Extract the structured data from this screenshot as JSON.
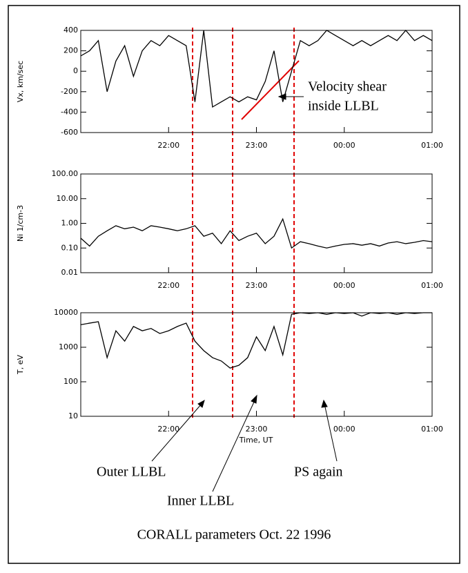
{
  "chart_data": [
    {
      "type": "line",
      "ylabel": "Vx, km/sec",
      "color": "#000000",
      "x": [
        21.0,
        21.1,
        21.2,
        21.3,
        21.4,
        21.5,
        21.6,
        21.7,
        21.8,
        21.9,
        22.0,
        22.1,
        22.2,
        22.3,
        22.4,
        22.5,
        22.6,
        22.7,
        22.8,
        22.9,
        23.0,
        23.1,
        23.2,
        23.3,
        23.4,
        23.5,
        23.6,
        23.7,
        23.8,
        23.9,
        24.0,
        24.1,
        24.2,
        24.3,
        24.4,
        24.5,
        24.6,
        24.7,
        24.8,
        24.9,
        25.0
      ],
      "values": [
        150,
        200,
        300,
        -200,
        100,
        250,
        -50,
        200,
        300,
        250,
        350,
        300,
        250,
        -300,
        400,
        -350,
        -300,
        -250,
        -300,
        -250,
        -280,
        -100,
        200,
        -300,
        0,
        300,
        250,
        300,
        400,
        350,
        300,
        250,
        300,
        250,
        300,
        350,
        300,
        400,
        300,
        350,
        300
      ],
      "xlim": [
        21,
        25
      ],
      "xticks": [
        {
          "value": 22,
          "label": "22:00"
        },
        {
          "value": 23,
          "label": "23:00"
        },
        {
          "value": 24,
          "label": "00:00"
        },
        {
          "value": 25,
          "label": "01:00"
        }
      ],
      "ylim": [
        -600,
        400
      ],
      "yticks": [
        -600,
        -400,
        -200,
        0,
        200,
        400
      ],
      "log_scale": false
    },
    {
      "type": "line",
      "ylabel": "Ni 1/cm-3",
      "color": "#000000",
      "x": [
        21.0,
        21.1,
        21.2,
        21.3,
        21.4,
        21.5,
        21.6,
        21.7,
        21.8,
        21.9,
        22.0,
        22.1,
        22.2,
        22.3,
        22.4,
        22.5,
        22.6,
        22.7,
        22.8,
        22.9,
        23.0,
        23.1,
        23.2,
        23.3,
        23.4,
        23.5,
        23.6,
        23.7,
        23.8,
        23.9,
        24.0,
        24.1,
        24.2,
        24.3,
        24.4,
        24.5,
        24.6,
        24.7,
        24.8,
        24.9,
        25.0
      ],
      "values": [
        0.25,
        0.12,
        0.3,
        0.5,
        0.8,
        0.6,
        0.7,
        0.5,
        0.8,
        0.7,
        0.6,
        0.5,
        0.6,
        0.8,
        0.3,
        0.4,
        0.15,
        0.5,
        0.2,
        0.3,
        0.4,
        0.15,
        0.3,
        1.5,
        0.1,
        0.18,
        0.15,
        0.12,
        0.1,
        0.12,
        0.14,
        0.15,
        0.13,
        0.15,
        0.12,
        0.16,
        0.18,
        0.15,
        0.17,
        0.2,
        0.18
      ],
      "xlim": [
        21,
        25
      ],
      "xticks": [
        {
          "value": 22,
          "label": "22:00"
        },
        {
          "value": 23,
          "label": "23:00"
        },
        {
          "value": 24,
          "label": "00:00"
        },
        {
          "value": 25,
          "label": "01:00"
        }
      ],
      "ylim": [
        0.01,
        100
      ],
      "yticks": [
        0.01,
        {
          "value": 0.1,
          "label": "0.10"
        },
        {
          "value": 1,
          "label": "1.00"
        },
        {
          "value": 10,
          "label": "10.00"
        },
        {
          "value": 100,
          "label": "100.00"
        }
      ],
      "log_scale": true
    },
    {
      "type": "line",
      "ylabel": "T, eV",
      "xlabel": "Time, UT",
      "color": "#000000",
      "x": [
        21.0,
        21.1,
        21.2,
        21.3,
        21.4,
        21.5,
        21.6,
        21.7,
        21.8,
        21.9,
        22.0,
        22.1,
        22.2,
        22.3,
        22.4,
        22.5,
        22.6,
        22.7,
        22.8,
        22.9,
        23.0,
        23.1,
        23.2,
        23.3,
        23.4,
        23.5,
        23.6,
        23.7,
        23.8,
        23.9,
        24.0,
        24.1,
        24.2,
        24.3,
        24.4,
        24.5,
        24.6,
        24.7,
        24.8,
        24.9,
        25.0
      ],
      "values": [
        4500,
        5000,
        5500,
        500,
        3000,
        1500,
        4000,
        3000,
        3500,
        2500,
        3000,
        4000,
        5000,
        1500,
        800,
        500,
        400,
        250,
        300,
        500,
        2000,
        800,
        4000,
        600,
        9000,
        10000,
        9500,
        10000,
        9000,
        10000,
        9500,
        10000,
        8000,
        10000,
        9500,
        10000,
        9000,
        10000,
        9500,
        10000,
        10000
      ],
      "xlim": [
        21,
        25
      ],
      "xticks": [
        {
          "value": 22,
          "label": "22:00"
        },
        {
          "value": 23,
          "label": "23:00"
        },
        {
          "value": 24,
          "label": "00:00"
        },
        {
          "value": 25,
          "label": "01:00"
        }
      ],
      "ylim": [
        10,
        10000
      ],
      "yticks": [
        10,
        100,
        1000,
        10000
      ],
      "log_scale": true
    }
  ],
  "annotations": [
    "Velocity shear",
    "inside LLBL",
    "Outer LLBL",
    "Inner LLBL",
    "PS again"
  ],
  "caption": "CORALL parameters Oct. 22 1996"
}
